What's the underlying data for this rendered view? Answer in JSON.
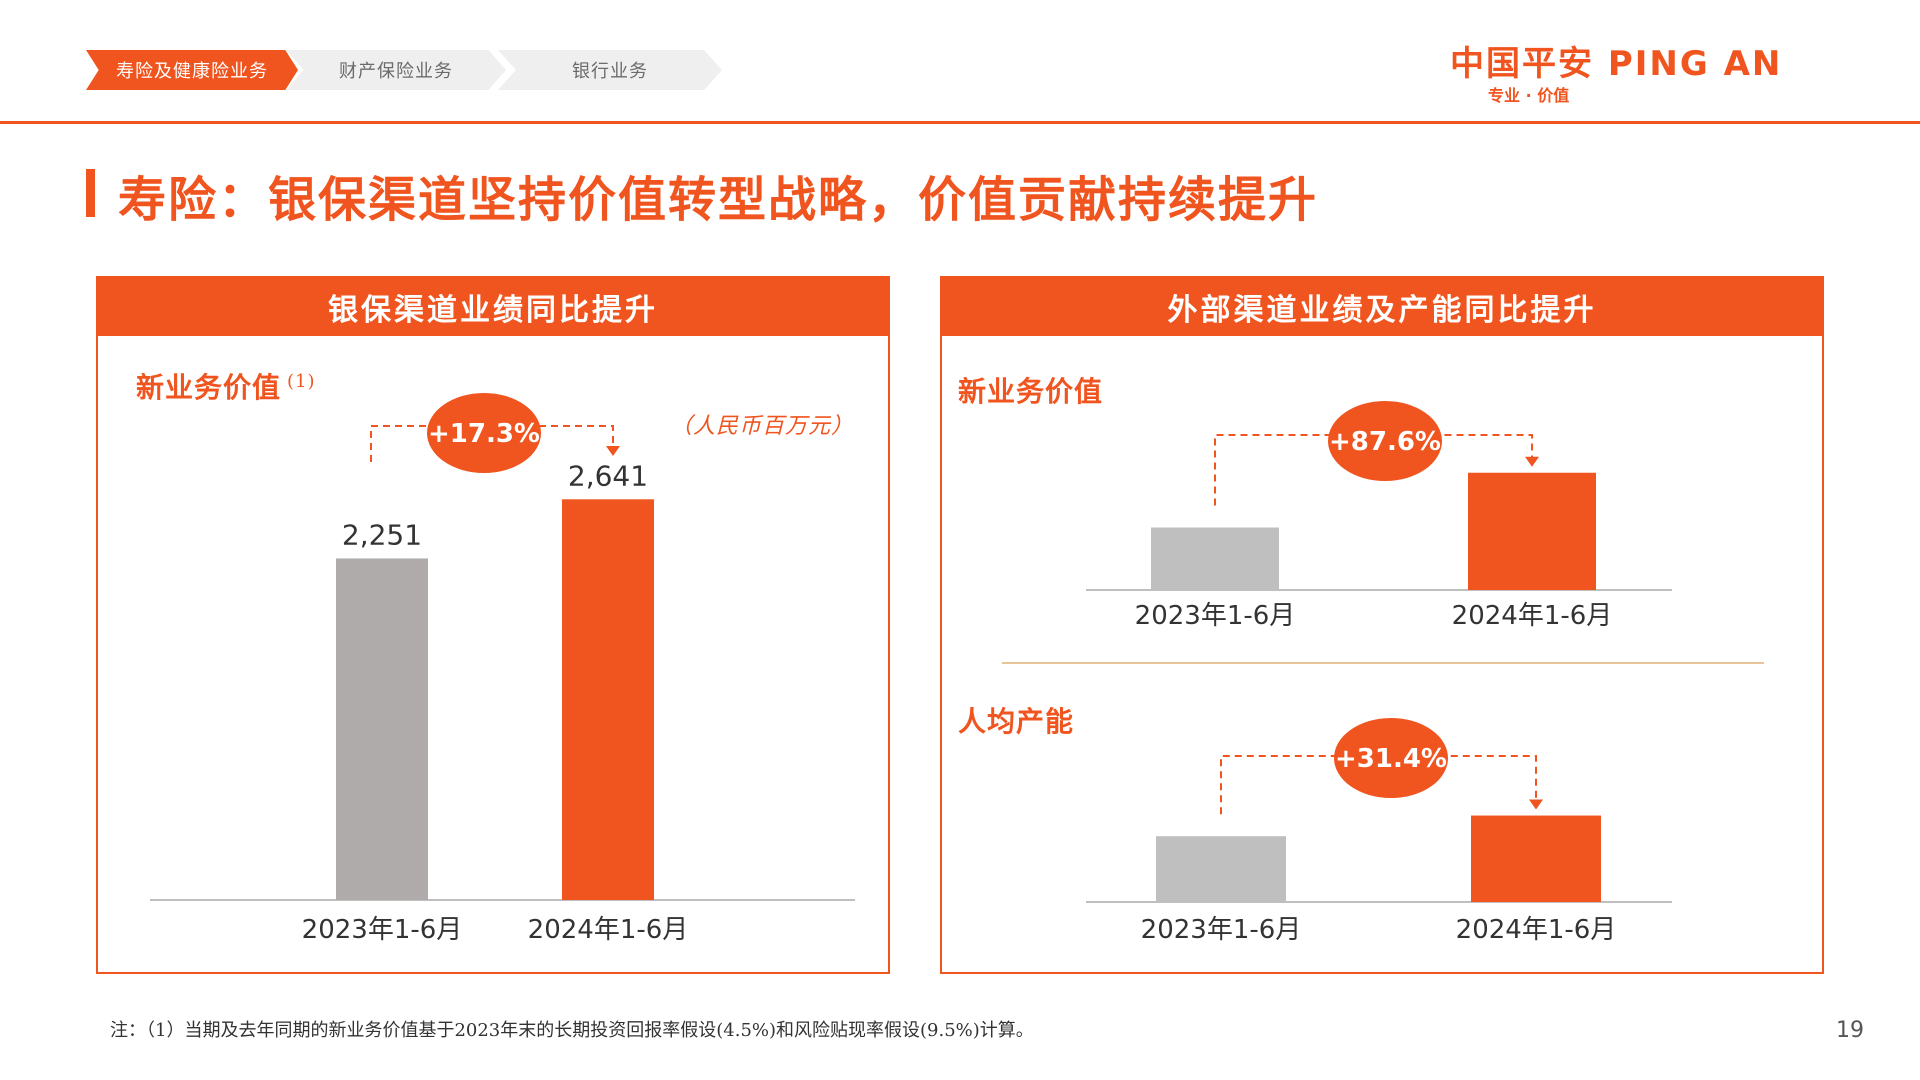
{
  "breadcrumb": {
    "items": [
      {
        "label": "寿险及健康险业务",
        "active": true
      },
      {
        "label": "财产保险业务",
        "active": false
      },
      {
        "label": "银行业务",
        "active": false
      }
    ]
  },
  "logo": {
    "main": "中国平安 PING AN",
    "tagline": "专业 · 价值"
  },
  "page": {
    "title": "寿险：银保渠道坚持价值转型战略，价值贡献持续提升",
    "footnote": "注：（1）当期及去年同期的新业务价值基于2023年末的长期投资回报率假设(4.5%)和风险贴现率假设(9.5%)计算。",
    "page_number": "19"
  },
  "colors": {
    "accent": "#f0541f",
    "prior_bar": "#afabaa",
    "prior_bar_light": "#bfbfbf",
    "divider": "#e8c49a"
  },
  "panels": {
    "left": {
      "header": "银保渠道业绩同比提升",
      "section": "新业务价值",
      "note_marker": "(1)",
      "unit": "（人民币百万元）"
    },
    "right": {
      "header": "外部渠道业绩及产能同比提升",
      "section_top": "新业务价值",
      "section_bottom": "人均产能"
    }
  },
  "chart_data": [
    {
      "type": "bar",
      "title": "新业务价值",
      "unit": "（人民币百万元）",
      "categories": [
        "2023年1-6月",
        "2024年1-6月"
      ],
      "values": [
        2251,
        2641
      ],
      "value_labels": [
        "2,251",
        "2,641"
      ],
      "growth_label": "+17.3%",
      "ylim": [
        0,
        2900
      ]
    },
    {
      "type": "bar",
      "title": "新业务价值",
      "categories": [
        "2023年1-6月",
        "2024年1-6月"
      ],
      "values": [
        100,
        187.6
      ],
      "growth_label": "+87.6%",
      "ylim": [
        0,
        200
      ]
    },
    {
      "type": "bar",
      "title": "人均产能",
      "categories": [
        "2023年1-6月",
        "2024年1-6月"
      ],
      "values": [
        100,
        131.4
      ],
      "growth_label": "+31.4%",
      "ylim": [
        0,
        190
      ]
    }
  ]
}
